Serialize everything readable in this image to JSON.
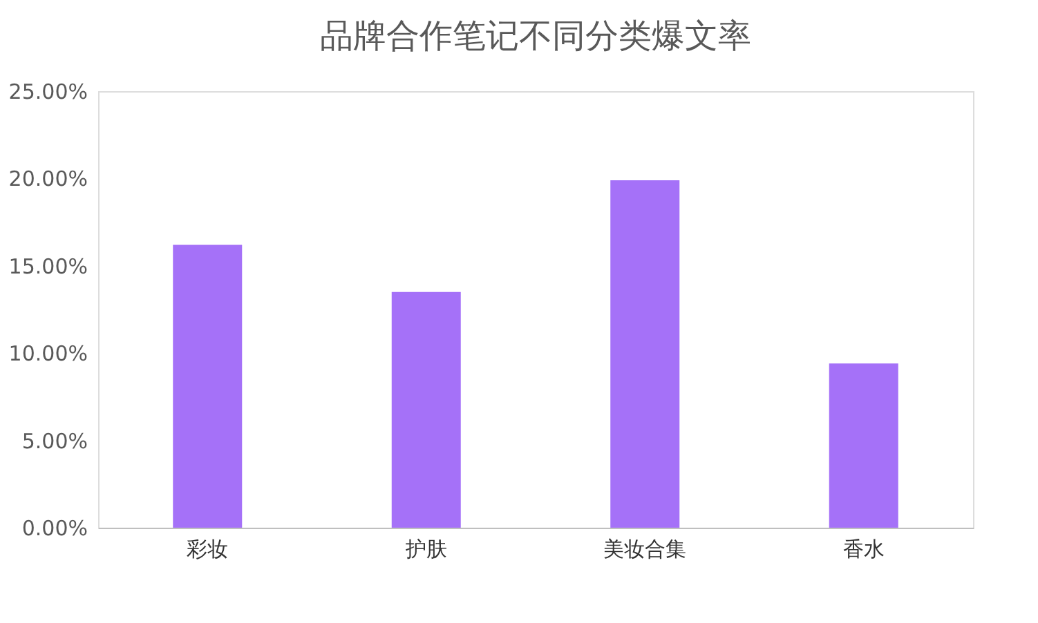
{
  "chart_data": {
    "type": "bar",
    "title": "品牌合作笔记不同分类爆文率",
    "categories": [
      "彩妆",
      "护肤",
      "美妆合集",
      "香水"
    ],
    "values": [
      16.2,
      13.5,
      19.9,
      9.4
    ],
    "color": "#a571f8",
    "ylim": [
      0,
      25
    ],
    "yticks": [
      {
        "value": 0,
        "label": "0.00%"
      },
      {
        "value": 5,
        "label": "5.00%"
      },
      {
        "value": 10,
        "label": "10.00%"
      },
      {
        "value": 15,
        "label": "15.00%"
      },
      {
        "value": 20,
        "label": "20.00%"
      },
      {
        "value": 25,
        "label": "25.00%"
      }
    ],
    "grid": false
  }
}
